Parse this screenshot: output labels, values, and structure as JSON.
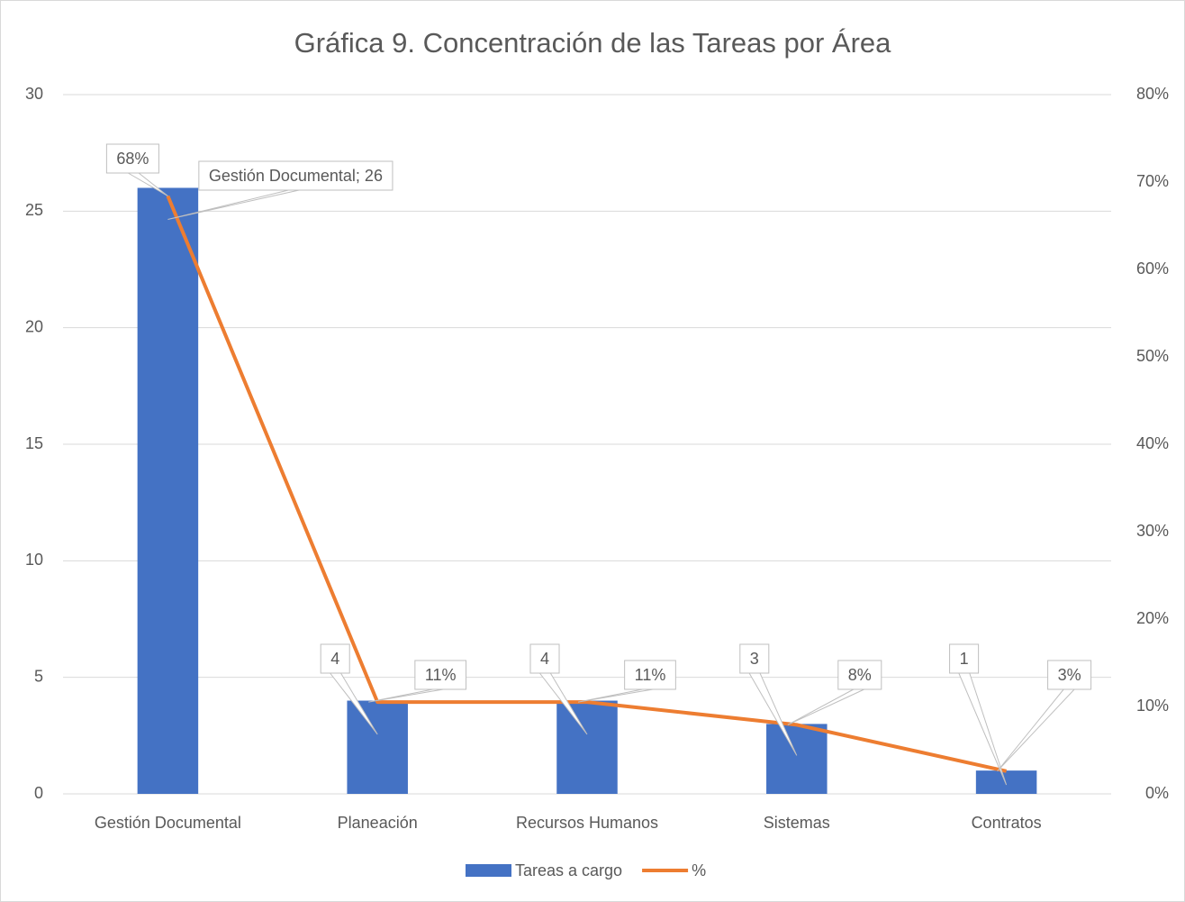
{
  "chart_data": {
    "type": "bar",
    "title": "Gráfica 9. Concentración de las Tareas por Área",
    "categories": [
      "Gestión Documental",
      "Planeación",
      "Recursos Humanos",
      "Sistemas",
      "Contratos"
    ],
    "series": [
      {
        "name": "Tareas a cargo",
        "type": "bar",
        "color": "#4472c4",
        "values": [
          26,
          4,
          4,
          3,
          1
        ],
        "value_labels": [
          "Gestión Documental; 26",
          "4",
          "4",
          "3",
          "1"
        ]
      },
      {
        "name": "%",
        "type": "line",
        "axis": "y2",
        "color": "#ed7d31",
        "values": [
          68.4,
          10.5,
          10.5,
          7.9,
          2.6
        ],
        "value_labels": [
          "68%",
          "11%",
          "11%",
          "8%",
          "3%"
        ]
      }
    ],
    "ylim": [
      0,
      30
    ],
    "yticks": [
      0,
      5,
      10,
      15,
      20,
      25,
      30
    ],
    "y2lim": [
      0,
      80
    ],
    "y2ticks": [
      {
        "value": 0,
        "label": "0%"
      },
      {
        "value": 10,
        "label": "10%"
      },
      {
        "value": 20,
        "label": "20%"
      },
      {
        "value": 30,
        "label": "30%"
      },
      {
        "value": 40,
        "label": "40%"
      },
      {
        "value": 50,
        "label": "50%"
      },
      {
        "value": 60,
        "label": "60%"
      },
      {
        "value": 70,
        "label": "70%"
      },
      {
        "value": 80,
        "label": "80%"
      }
    ],
    "grid": true,
    "legend": "bottom"
  }
}
